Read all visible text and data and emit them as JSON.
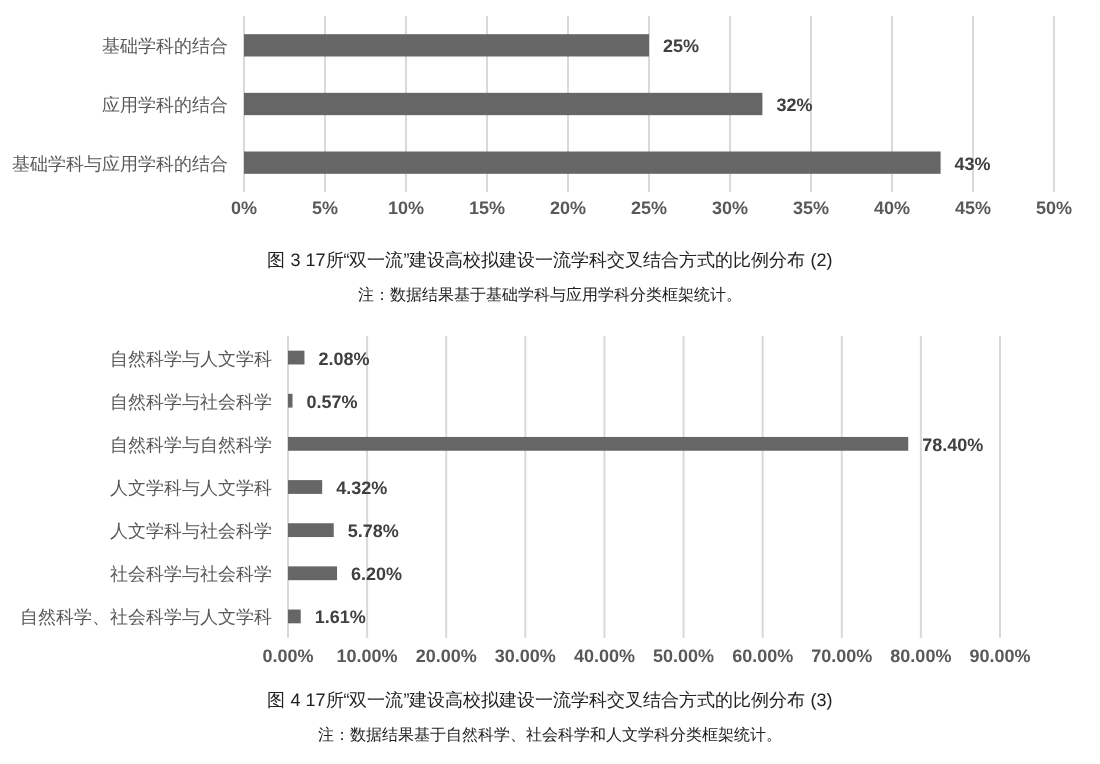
{
  "chart_data": [
    {
      "type": "bar",
      "orientation": "horizontal",
      "categories": [
        "基础学科的结合",
        "应用学科的结合",
        "基础学科与应用学科的结合"
      ],
      "values": [
        25,
        32,
        43
      ],
      "value_labels": [
        "25%",
        "32%",
        "43%"
      ],
      "color": "#666666",
      "xlim": [
        0,
        50
      ],
      "xticks": [
        {
          "value": 0,
          "label": "0%"
        },
        {
          "value": 5,
          "label": "5%"
        },
        {
          "value": 10,
          "label": "10%"
        },
        {
          "value": 15,
          "label": "15%"
        },
        {
          "value": 20,
          "label": "20%"
        },
        {
          "value": 25,
          "label": "25%"
        },
        {
          "value": 30,
          "label": "30%"
        },
        {
          "value": 35,
          "label": "35%"
        },
        {
          "value": 40,
          "label": "40%"
        },
        {
          "value": 45,
          "label": "45%"
        },
        {
          "value": 50,
          "label": "50%"
        }
      ],
      "grid": "x",
      "title": "图 3  17所“双一流”建设高校拟建设一流学科交叉结合方式的比例分布 (2)",
      "annotations": [
        "注：数据结果基于基础学科与应用学科分类框架统计。"
      ]
    },
    {
      "type": "bar",
      "orientation": "horizontal",
      "categories": [
        "自然科学与人文学科",
        "自然科学与社会科学",
        "自然科学与自然科学",
        "人文学科与人文学科",
        "人文学科与社会科学",
        "社会科学与社会科学",
        "自然科学、社会科学与人文学科"
      ],
      "values": [
        2.08,
        0.57,
        78.4,
        4.32,
        5.78,
        6.2,
        1.61
      ],
      "value_labels": [
        "2.08%",
        "0.57%",
        "78.40%",
        "4.32%",
        "5.78%",
        "6.20%",
        "1.61%"
      ],
      "color": "#666666",
      "xlim": [
        0,
        90
      ],
      "xticks": [
        {
          "value": 0,
          "label": "0.00%"
        },
        {
          "value": 10,
          "label": "10.00%"
        },
        {
          "value": 20,
          "label": "20.00%"
        },
        {
          "value": 30,
          "label": "30.00%"
        },
        {
          "value": 40,
          "label": "40.00%"
        },
        {
          "value": 50,
          "label": "50.00%"
        },
        {
          "value": 60,
          "label": "60.00%"
        },
        {
          "value": 70,
          "label": "70.00%"
        },
        {
          "value": 80,
          "label": "80.00%"
        },
        {
          "value": 90,
          "label": "90.00%"
        }
      ],
      "grid": "x",
      "title": "图 4  17所“双一流”建设高校拟建设一流学科交叉结合方式的比例分布 (3)",
      "annotations": [
        "注：数据结果基于自然科学、社会科学和人文学科分类框架统计。"
      ]
    }
  ]
}
